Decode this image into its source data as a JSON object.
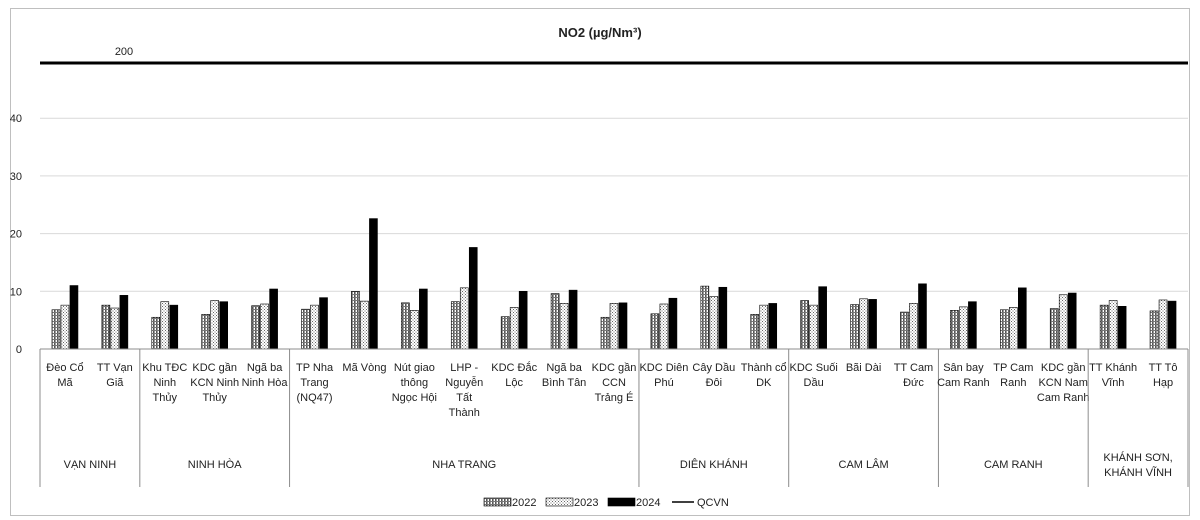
{
  "chart_data": {
    "type": "bar",
    "title": "NO2 (µg/Nm³)",
    "ylim": [
      0,
      50
    ],
    "yticks": [
      0,
      10,
      20,
      30,
      40
    ],
    "reference": {
      "name": "QCVN",
      "value": 200,
      "label": "200"
    },
    "groups": [
      {
        "label": "VẠN NINH",
        "stations": [
          "Đèo Cổ Mã",
          "TT Vạn Giã"
        ]
      },
      {
        "label": "NINH HÒA",
        "stations": [
          "Khu TĐC Ninh Thủy",
          "KDC gần KCN Ninh Thủy",
          "Ngã ba Ninh Hòa"
        ]
      },
      {
        "label": "NHA TRANG",
        "stations": [
          "TP Nha Trang (NQ47)",
          "Mã Vòng",
          "Nút giao thông Ngọc Hội",
          "LHP - Nguyễn Tất Thành",
          "KDC Đắc Lộc",
          "Ngã ba Bình Tân",
          "KDC gần CCN Trảng É"
        ]
      },
      {
        "label": "DIÊN KHÁNH",
        "stations": [
          "KDC Diên Phú",
          "Cây Dầu Đôi",
          "Thành cổ DK"
        ]
      },
      {
        "label": "CAM LÂM",
        "stations": [
          "KDC Suối Dầu",
          "Bãi Dài",
          "TT Cam Đức"
        ]
      },
      {
        "label": "CAM RANH",
        "stations": [
          "Sân bay Cam Ranh",
          "TP Cam Ranh",
          "KDC gần KCN Nam Cam Ranh"
        ]
      },
      {
        "label": "KHÁNH SƠN, KHÁNH VĨNH",
        "stations": [
          "TT Khánh Vĩnh",
          "TT Tô Hạp"
        ]
      }
    ],
    "series": [
      {
        "name": "2022",
        "values": [
          6.8,
          7.6,
          5.5,
          6.0,
          7.5,
          6.9,
          10.0,
          8.0,
          8.2,
          5.6,
          9.6,
          5.5,
          6.1,
          10.9,
          6.0,
          8.4,
          7.7,
          6.4,
          6.7,
          6.8,
          7.0,
          7.6,
          6.6
        ]
      },
      {
        "name": "2023",
        "values": [
          7.6,
          7.1,
          8.2,
          8.4,
          7.8,
          7.6,
          8.3,
          6.7,
          10.6,
          7.2,
          7.9,
          7.9,
          7.8,
          9.1,
          7.6,
          7.6,
          8.7,
          7.9,
          7.3,
          7.2,
          9.4,
          8.4,
          8.5
        ]
      },
      {
        "name": "2024",
        "values": [
          11.0,
          9.3,
          7.6,
          8.2,
          10.4,
          8.9,
          22.6,
          10.4,
          17.6,
          10.0,
          10.2,
          8.0,
          8.8,
          10.7,
          7.9,
          10.8,
          8.6,
          11.3,
          8.2,
          10.6,
          9.7,
          7.4,
          8.3
        ]
      }
    ],
    "legend": {
      "placement": "bottom",
      "items": [
        "2022",
        "2023",
        "2024",
        "QCVN"
      ]
    },
    "colors": {
      "bar_2022": "#7f7f7f",
      "bar_2023": "#d9d9d9",
      "bar_2024": "#000000",
      "qcvn": "#000000"
    }
  }
}
